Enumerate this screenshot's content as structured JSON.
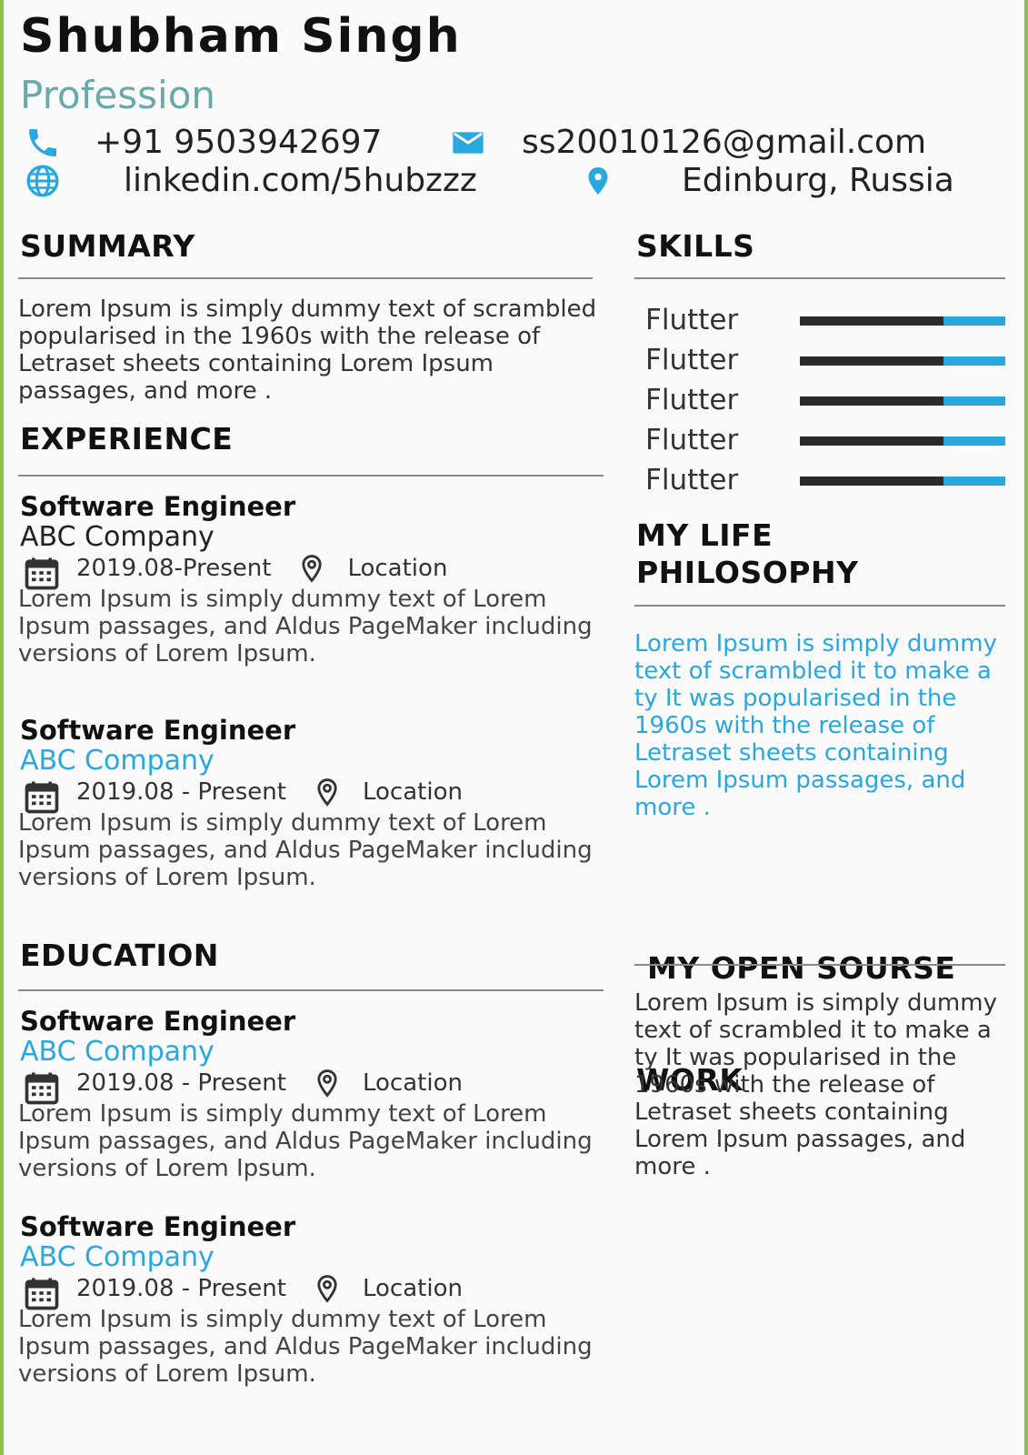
{
  "header": {
    "name": "Shubham Singh",
    "profession": "Profession",
    "phone": "+91 9503942697",
    "email": "ss20010126@gmail.com",
    "linkedin": "linkedin.com/5hubzzz",
    "location": "Edinburg, Russia"
  },
  "summary": {
    "title": "SUMMARY",
    "text": "Lorem Ipsum is simply dummy text of scrambled  popularised in the 1960s with the release of Letraset sheets containing Lorem Ipsum passages, and more ."
  },
  "experience": {
    "title": "EXPERIENCE",
    "items": [
      {
        "role": "Software Engineer",
        "company": "ABC Company",
        "dates": "2019.08-Present",
        "location": "Location",
        "desc": "Lorem Ipsum is simply dummy text of Lorem Ipsum passages, and  Aldus PageMaker including versions of Lorem Ipsum."
      },
      {
        "role": "Software Engineer",
        "company": "ABC Company",
        "dates": "2019.08 - Present",
        "location": "Location",
        "desc": "Lorem Ipsum is simply dummy text of Lorem Ipsum passages, and  Aldus PageMaker including versions of Lorem Ipsum."
      }
    ]
  },
  "education": {
    "title": "EDUCATION",
    "items": [
      {
        "role": "Software Engineer",
        "company": "ABC Company",
        "dates": "2019.08 - Present",
        "location": "Location",
        "desc": "Lorem Ipsum is simply dummy text of Lorem Ipsum passages, and  Aldus PageMaker including versions of Lorem Ipsum."
      },
      {
        "role": "Software Engineer",
        "company": "ABC Company",
        "dates": "2019.08 - Present",
        "location": "Location",
        "desc": "Lorem Ipsum is simply dummy text of Lorem Ipsum passages, and  Aldus PageMaker including versions of Lorem Ipsum."
      }
    ]
  },
  "skills": {
    "title": "SKILLS",
    "items": [
      {
        "label": "Flutter",
        "level": 0.7
      },
      {
        "label": "Flutter",
        "level": 0.7
      },
      {
        "label": "Flutter",
        "level": 0.7
      },
      {
        "label": "Flutter",
        "level": 0.7
      },
      {
        "label": "Flutter",
        "level": 0.7
      }
    ]
  },
  "philosophy": {
    "title_line1": "MY LIFE",
    "title_line2": "PHILOSOPHY",
    "text": "Lorem Ipsum is simply dummy text of  scrambled it to make a ty It was popularised in the 1960s with the release of Letraset sheets containing Lorem Ipsum passages, and more ."
  },
  "open_source": {
    "title_line1": " MY OPEN SOURSE",
    "title_line2": "WORK",
    "text": "Lorem Ipsum is simply dummy text of  scrambled it to make a ty It was popularised in the 1960s with the release of Letraset sheets containing Lorem Ipsum passages, and more ."
  },
  "colors": {
    "accent_blue": "#29a8e0",
    "profession_teal": "#6aa9a9",
    "skill_dark": "#2b2b2b"
  },
  "icons": [
    "phone-icon",
    "email-icon",
    "globe-icon",
    "location-pin-icon",
    "calendar-icon",
    "location-outline-icon"
  ]
}
